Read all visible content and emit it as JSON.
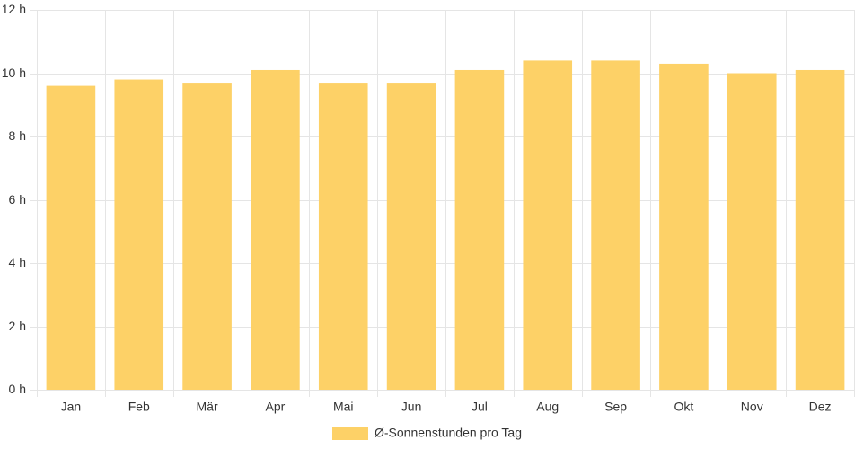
{
  "chart_data": {
    "type": "bar",
    "categories": [
      "Jan",
      "Feb",
      "Mär",
      "Apr",
      "Mai",
      "Jun",
      "Jul",
      "Aug",
      "Sep",
      "Okt",
      "Nov",
      "Dez"
    ],
    "series": [
      {
        "name": "Ø-Sonnenstunden pro Tag",
        "values": [
          9.6,
          9.8,
          9.7,
          10.1,
          9.7,
          9.7,
          10.1,
          10.4,
          10.4,
          10.3,
          10.0,
          10.1
        ],
        "color": "#fdd167"
      }
    ],
    "yticks": [
      "0 h",
      "2 h",
      "4 h",
      "6 h",
      "8 h",
      "10 h",
      "12 h"
    ],
    "ylim": [
      0,
      12
    ],
    "grid": true,
    "legend_position": "bottom",
    "colors": {
      "grid": "#e5e5e5",
      "text": "#333333"
    }
  }
}
